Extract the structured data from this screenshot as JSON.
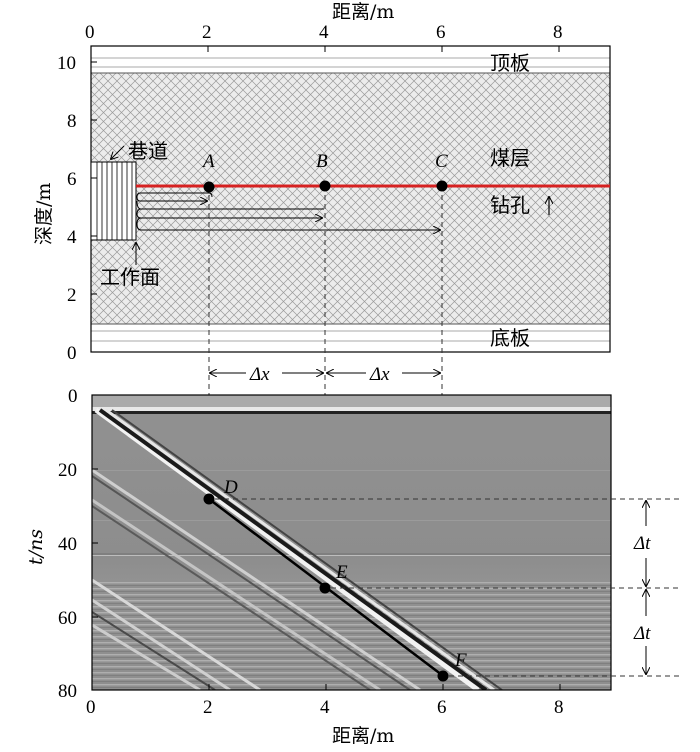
{
  "top_panel": {
    "x_axis_label": "距离/m",
    "y_axis_label": "深度/m",
    "x_ticks": [
      "0",
      "2",
      "4",
      "6",
      "8"
    ],
    "y_ticks": [
      "0",
      "2",
      "4",
      "6",
      "8",
      "10"
    ],
    "layers": {
      "roof": "顶板",
      "coal": "煤层",
      "floor": "底板"
    },
    "roadway_label": "巷道",
    "workface_label": "工作面",
    "borehole_label": "钻孔",
    "points": [
      {
        "label": "A",
        "x": 2,
        "depth": 5.7
      },
      {
        "label": "B",
        "x": 4,
        "depth": 5.7
      },
      {
        "label": "C",
        "x": 6,
        "depth": 5.7
      }
    ],
    "colors": {
      "borehole": "#d62020"
    }
  },
  "spacing": {
    "label_1": "Δx",
    "label_2": "Δx"
  },
  "bottom_panel": {
    "x_axis_label": "距离/m",
    "y_axis_label": "t/ns",
    "x_ticks": [
      "0",
      "2",
      "4",
      "6",
      "8"
    ],
    "y_ticks": [
      "0",
      "20",
      "40",
      "60",
      "80"
    ],
    "points": [
      {
        "label": "D",
        "x": 2,
        "t": 28
      },
      {
        "label": "E",
        "x": 4,
        "t": 52
      },
      {
        "label": "F",
        "x": 6,
        "t": 75
      }
    ],
    "delta_t_labels": [
      "Δt",
      "Δt"
    ]
  },
  "chart_data": {
    "type": "scatter",
    "xlabel": "距离/m",
    "ylabel": "t/ns",
    "x": [
      2,
      4,
      6
    ],
    "y": [
      28,
      52,
      75
    ],
    "xlim": [
      0,
      8.8
    ],
    "ylim": [
      80,
      0
    ]
  }
}
